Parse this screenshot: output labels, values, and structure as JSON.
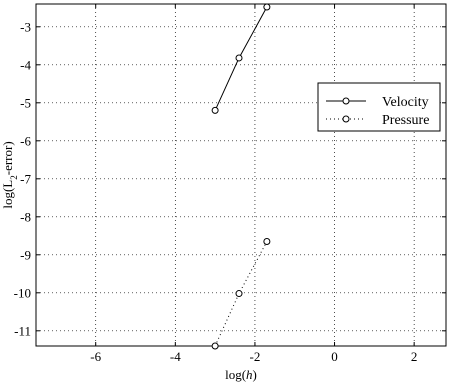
{
  "chart_data": {
    "type": "line",
    "xlabel": "log(",
    "xlabel_var": "h",
    "xlabel_close": ")",
    "ylabel": "log(L",
    "ylabel_sub": "2",
    "ylabel_close": "-error)",
    "xlim": [
      -7.5,
      2.8
    ],
    "ylim": [
      -11.4,
      -2.4
    ],
    "x_ticks": [
      -6,
      -4,
      -2,
      0,
      2
    ],
    "x_tick_labels": [
      "-6",
      "-4",
      "-2",
      "0",
      "2"
    ],
    "y_ticks": [
      -3,
      -4,
      -5,
      -6,
      -7,
      -8,
      -9,
      -10,
      -11
    ],
    "y_tick_labels": [
      "-3",
      "-4",
      "-5",
      "-6",
      "-7",
      "-8",
      "-9",
      "-10",
      "-11"
    ],
    "grid": true,
    "legend_position": "right",
    "series": [
      {
        "name": "Velocity",
        "line_style": "solid",
        "marker": "circle",
        "x": [
          -3.0,
          -2.4,
          -1.7
        ],
        "y": [
          -5.2,
          -3.82,
          -2.48
        ]
      },
      {
        "name": "Pressure",
        "line_style": "dotted",
        "marker": "circle",
        "x": [
          -3.0,
          -2.4,
          -1.7
        ],
        "y": [
          -11.4,
          -10.02,
          -8.65
        ]
      }
    ]
  }
}
